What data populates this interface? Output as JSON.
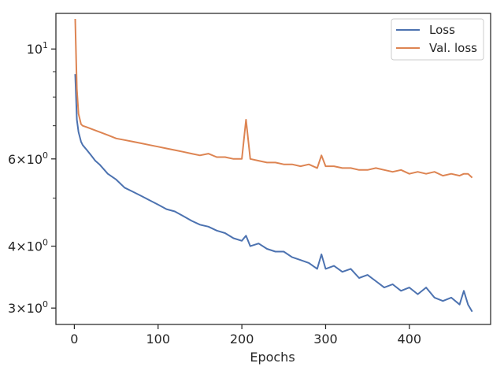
{
  "chart_data": {
    "type": "line",
    "title": "",
    "xlabel": "Epochs",
    "ylabel": "",
    "yscale": "log",
    "xlim": [
      -22,
      497
    ],
    "ylim": [
      2.78,
      11.8
    ],
    "grid": false,
    "legend_position": "top-right",
    "x_ticks": [
      {
        "value": 0,
        "label": "0"
      },
      {
        "value": 100,
        "label": "100"
      },
      {
        "value": 200,
        "label": "200"
      },
      {
        "value": 300,
        "label": "300"
      },
      {
        "value": 400,
        "label": "400"
      }
    ],
    "y_ticks": [
      {
        "value": 3,
        "mantissa": "3",
        "base": "10",
        "exp": "0"
      },
      {
        "value": 4,
        "mantissa": "4",
        "base": "10",
        "exp": "0"
      },
      {
        "value": 6,
        "mantissa": "6",
        "base": "10",
        "exp": "0"
      },
      {
        "value": 10,
        "mantissa": "",
        "base": "10",
        "exp": "1"
      }
    ],
    "y_minor_ticks": [
      5,
      7,
      8,
      9
    ],
    "x": [
      1,
      3,
      5,
      8,
      10,
      15,
      20,
      25,
      30,
      40,
      50,
      60,
      70,
      80,
      90,
      100,
      110,
      120,
      130,
      140,
      150,
      160,
      170,
      180,
      190,
      200,
      205,
      210,
      220,
      230,
      240,
      250,
      260,
      270,
      280,
      290,
      295,
      300,
      310,
      320,
      330,
      340,
      350,
      360,
      370,
      380,
      390,
      400,
      410,
      420,
      430,
      440,
      450,
      460,
      465,
      470,
      475
    ],
    "series": [
      {
        "name": "Loss",
        "color": "#4c72b0",
        "values": [
          8.9,
          7.2,
          6.8,
          6.5,
          6.4,
          6.25,
          6.1,
          5.95,
          5.85,
          5.6,
          5.45,
          5.25,
          5.15,
          5.05,
          4.95,
          4.85,
          4.75,
          4.7,
          4.6,
          4.5,
          4.42,
          4.38,
          4.3,
          4.25,
          4.15,
          4.1,
          4.2,
          4.0,
          4.05,
          3.95,
          3.9,
          3.9,
          3.8,
          3.75,
          3.7,
          3.6,
          3.85,
          3.6,
          3.65,
          3.55,
          3.6,
          3.45,
          3.5,
          3.4,
          3.3,
          3.35,
          3.25,
          3.3,
          3.2,
          3.3,
          3.15,
          3.1,
          3.15,
          3.05,
          3.25,
          3.05,
          2.95
        ]
      },
      {
        "name": "Val. loss",
        "color": "#dd8452",
        "values": [
          11.5,
          8.3,
          7.4,
          7.05,
          7.0,
          6.95,
          6.9,
          6.85,
          6.8,
          6.7,
          6.6,
          6.55,
          6.5,
          6.45,
          6.4,
          6.35,
          6.3,
          6.25,
          6.2,
          6.15,
          6.1,
          6.15,
          6.05,
          6.05,
          6.0,
          6.0,
          7.2,
          6.0,
          5.95,
          5.9,
          5.9,
          5.85,
          5.85,
          5.8,
          5.85,
          5.75,
          6.1,
          5.8,
          5.8,
          5.75,
          5.75,
          5.7,
          5.7,
          5.75,
          5.7,
          5.65,
          5.7,
          5.6,
          5.65,
          5.6,
          5.65,
          5.55,
          5.6,
          5.55,
          5.6,
          5.6,
          5.5
        ]
      }
    ]
  }
}
